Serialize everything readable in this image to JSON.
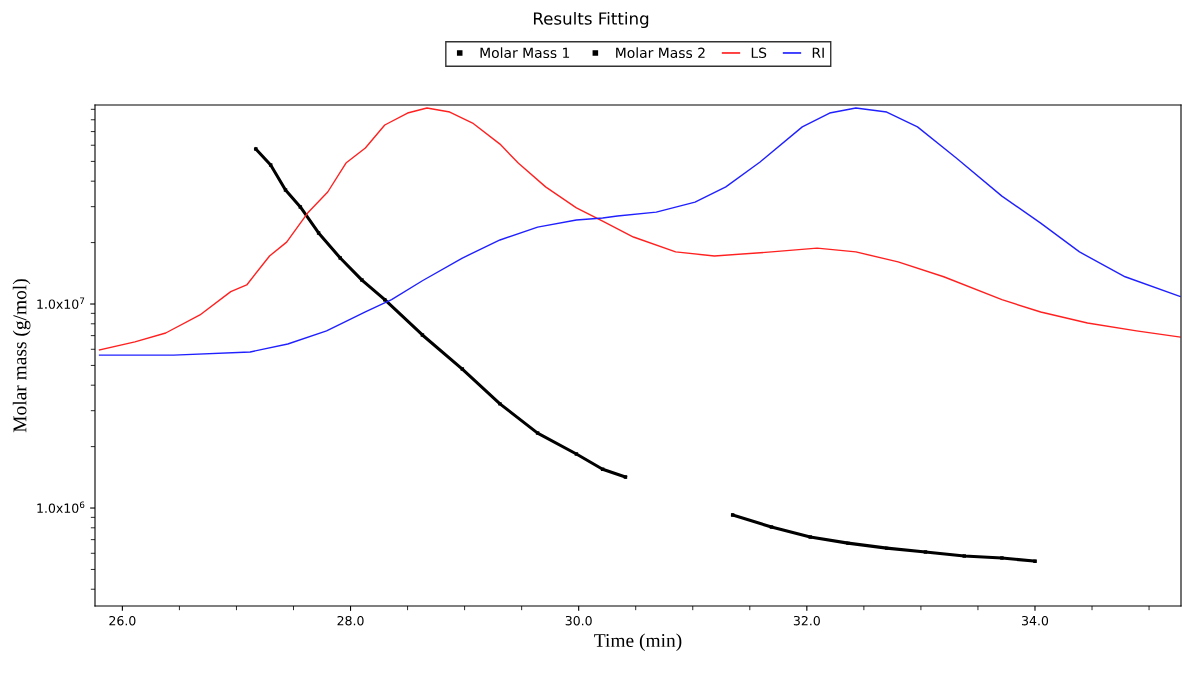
{
  "chart_data": {
    "type": "line",
    "title": "Results Fitting",
    "xlabel": "Time (min)",
    "ylabel": "Molar mass (g/mol)",
    "log": "y",
    "grid": false,
    "legend": "top",
    "xlim": [
      25.76,
      35.28
    ],
    "ylim": [
      331000,
      94500000
    ],
    "xticks": [
      {
        "value": 26,
        "label": "26.0"
      },
      {
        "value": 28,
        "label": "28.0"
      },
      {
        "value": 30,
        "label": "30.0"
      },
      {
        "value": 32,
        "label": "32.0"
      },
      {
        "value": 34,
        "label": "34.0"
      }
    ],
    "yticks": [
      {
        "value": 1000000,
        "label": "1.0x10$^{6}$"
      },
      {
        "value": 10000000,
        "label": "1.0x10$^{7}$"
      }
    ],
    "series": [
      {
        "name": "Molar Mass 1",
        "color": "#000000",
        "marker": "square",
        "x": [
          27.17,
          27.3,
          27.43,
          27.56,
          27.72,
          27.91,
          28.1,
          28.3,
          28.63,
          28.98,
          29.31,
          29.64,
          29.98,
          30.21,
          30.41
        ],
        "values": [
          57500000,
          48000000,
          36200000,
          29900000,
          22300000,
          16800000,
          13100000,
          10500000,
          7050000,
          4800000,
          3240000,
          2330000,
          1840000,
          1550000,
          1420000
        ]
      },
      {
        "name": "Molar Mass 2",
        "color": "#000000",
        "marker": "square",
        "x": [
          31.35,
          31.69,
          32.03,
          32.36,
          32.7,
          33.04,
          33.38,
          33.71,
          34.0
        ],
        "values": [
          925000,
          807000,
          721000,
          673000,
          636000,
          609000,
          582000,
          569000,
          549000
        ]
      },
      {
        "name": "LS",
        "color": "#ff2020",
        "x": [
          25.8,
          26.11,
          26.38,
          26.68,
          26.95,
          27.09,
          27.29,
          27.44,
          27.63,
          27.8,
          27.96,
          28.13,
          28.3,
          28.5,
          28.67,
          28.87,
          29.07,
          29.31,
          29.47,
          29.71,
          29.98,
          30.21,
          30.48,
          30.85,
          31.19,
          31.69,
          32.09,
          32.43,
          32.8,
          33.2,
          33.71,
          34.05,
          34.46,
          34.89,
          35.27
        ],
        "values": [
          5960000,
          6520000,
          7210000,
          8840000,
          11500000,
          12400000,
          17200000,
          20100000,
          28200000,
          35400000,
          49100000,
          58200000,
          75400000,
          86300000,
          91400000,
          87300000,
          77100000,
          60800000,
          49100000,
          37500000,
          29600000,
          25500000,
          21300000,
          18000000,
          17200000,
          18000000,
          18800000,
          18000000,
          16100000,
          13600000,
          10500000,
          9140000,
          8070000,
          7380000,
          6890000
        ]
      },
      {
        "name": "RI",
        "color": "#2020ff",
        "x": [
          25.8,
          26.45,
          27.12,
          27.45,
          27.79,
          28.13,
          28.36,
          28.63,
          28.98,
          29.31,
          29.64,
          29.98,
          30.21,
          30.34,
          30.68,
          31.02,
          31.29,
          31.59,
          31.96,
          32.2,
          32.43,
          32.7,
          32.97,
          33.31,
          33.71,
          34.05,
          34.39,
          34.79,
          35.27
        ],
        "values": [
          5620000,
          5620000,
          5820000,
          6370000,
          7380000,
          9140000,
          10500000,
          13000000,
          16800000,
          20600000,
          23800000,
          25800000,
          26400000,
          27000000,
          28200000,
          31600000,
          37500000,
          49700000,
          73800000,
          86300000,
          91400000,
          87300000,
          73800000,
          52000000,
          33800000,
          24900000,
          18000000,
          13600000,
          10900000
        ]
      }
    ]
  }
}
